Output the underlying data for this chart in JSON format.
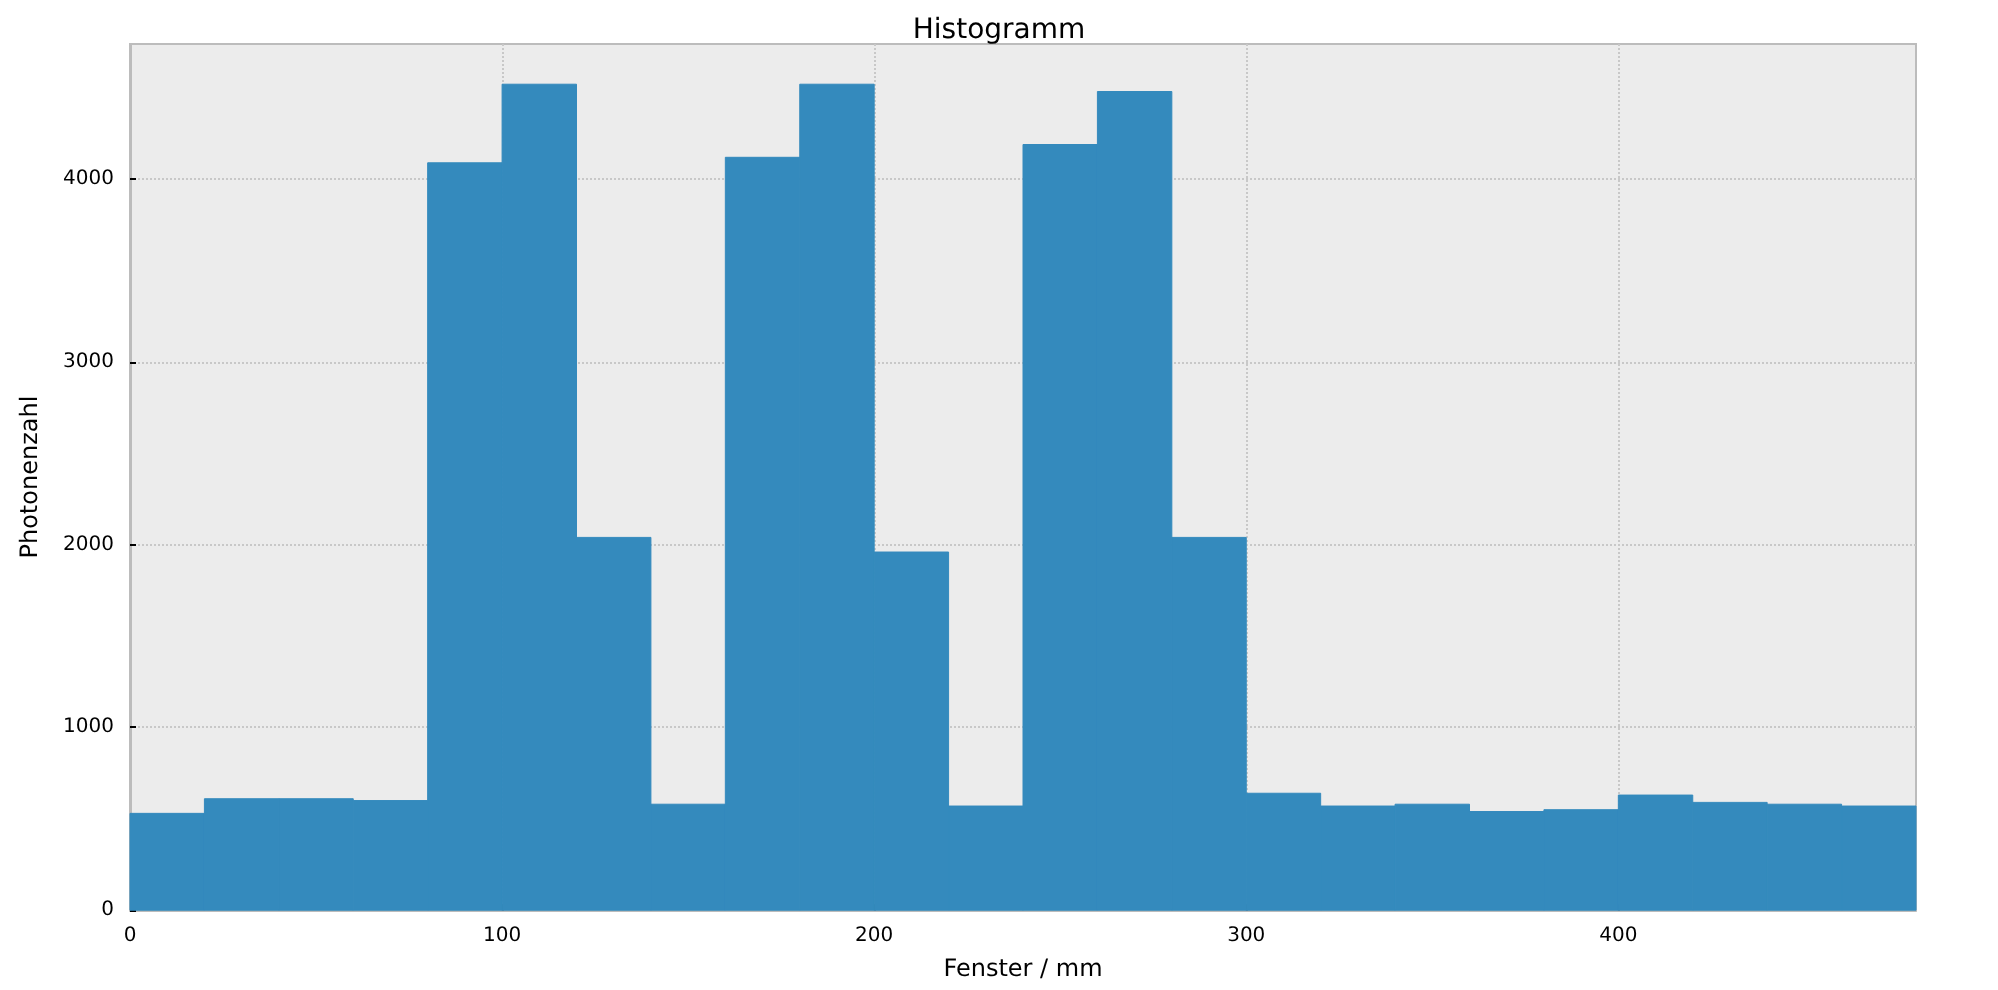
{
  "chart_data": {
    "type": "histogram",
    "title": "Histogramm",
    "xlabel": "Fenster / mm",
    "ylabel": "Photonenzahl",
    "bins": [
      0,
      20,
      40,
      60,
      80,
      100,
      120,
      140,
      160,
      180,
      200,
      220,
      240,
      260,
      280,
      300,
      320,
      340,
      360,
      380,
      400,
      420,
      440,
      460,
      480
    ],
    "values": [
      530,
      610,
      610,
      600,
      4090,
      4520,
      2040,
      580,
      4120,
      4520,
      1960,
      570,
      4190,
      4480,
      2040,
      640,
      570,
      580,
      540,
      550,
      630,
      590,
      580,
      570
    ],
    "color": "#348abd",
    "xlim": [
      0,
      480
    ],
    "xticks": [
      0,
      100,
      200,
      300,
      400
    ],
    "ylim": [
      0,
      4740
    ],
    "yticks": [
      0,
      1000,
      2000,
      3000,
      4000
    ],
    "grid": true
  }
}
